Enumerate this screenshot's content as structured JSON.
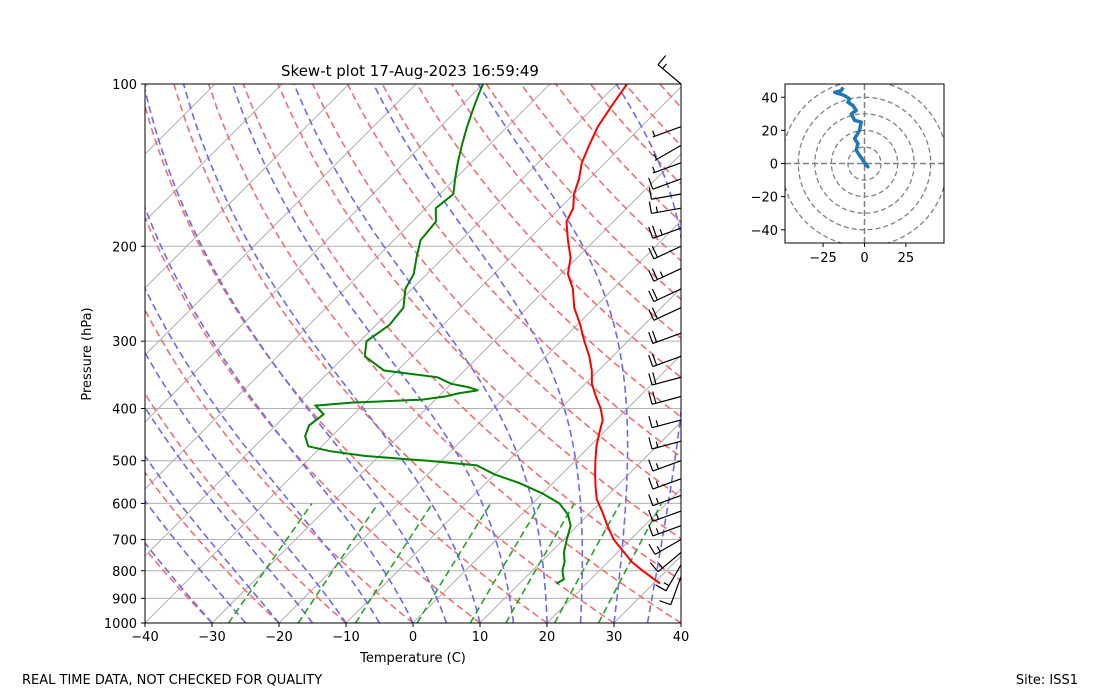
{
  "footer": {
    "left_note": "REAL TIME DATA, NOT CHECKED FOR QUALITY",
    "site": "Site: ISS1"
  },
  "colors": {
    "temperature": "#ff0000",
    "dewpoint": "#008000",
    "isotherm": "#b0b0b0",
    "dry_adiabat": "#f07070",
    "moist_adiabat": "#6a6af0",
    "mixing_ratio": "#2ca02c",
    "hodograph": "#1f77b4",
    "barb": "#000000"
  },
  "chart_data": [
    {
      "type": "line",
      "subtype": "skew-t",
      "title": "Skew-t plot 17-Aug-2023 16:59:49",
      "xlabel": "Temperature (C)",
      "ylabel": "Pressure (hPa)",
      "xlim": [
        -40,
        40
      ],
      "ylim": [
        1000,
        100
      ],
      "y_scale": "log",
      "x_ticks": [
        -40,
        -30,
        -20,
        -10,
        0,
        10,
        20,
        30,
        40
      ],
      "x_tick_labels": [
        "−40",
        "−30",
        "−20",
        "−10",
        "0",
        "10",
        "20",
        "30",
        "40"
      ],
      "y_ticks": [
        1000,
        900,
        800,
        700,
        600,
        500,
        400,
        300,
        200,
        100
      ],
      "y_tick_labels": [
        "1000",
        "900",
        "800",
        "700",
        "600",
        "500",
        "400",
        "300",
        "200",
        "100"
      ],
      "series": [
        {
          "name": "Temperature",
          "color": "#ff0000",
          "p": [
            845,
            830,
            800,
            770,
            740,
            700,
            660,
            620,
            590,
            560,
            530,
            500,
            470,
            445,
            420,
            400,
            380,
            360,
            340,
            320,
            300,
            280,
            260,
            240,
            225,
            210,
            195,
            180,
            170,
            160,
            150,
            140,
            130,
            120,
            110,
            105,
            100
          ],
          "t": [
            31.0,
            29.5,
            26.5,
            23.5,
            21.0,
            17.5,
            14.5,
            11.5,
            9.0,
            7.0,
            5.0,
            3.0,
            1.0,
            -0.5,
            -2.0,
            -4.0,
            -6.5,
            -9.0,
            -11.0,
            -13.5,
            -16.5,
            -19.5,
            -23.0,
            -26.0,
            -29.0,
            -31.0,
            -34.0,
            -37.0,
            -38.0,
            -40.0,
            -41.5,
            -43.5,
            -45.0,
            -46.5,
            -47.5,
            -48.0,
            -48.5
          ]
        },
        {
          "name": "Dewpoint",
          "color": "#008000",
          "p": [
            845,
            830,
            800,
            770,
            740,
            700,
            660,
            630,
            600,
            575,
            550,
            530,
            510,
            500,
            495,
            490,
            480,
            470,
            450,
            430,
            410,
            395,
            390,
            385,
            380,
            375,
            370,
            365,
            360,
            350,
            340,
            320,
            300,
            280,
            260,
            240,
            225,
            210,
            195,
            180,
            170,
            160,
            150,
            140,
            130,
            120,
            110,
            105,
            100
          ],
          "t": [
            15.5,
            16.0,
            14.5,
            13.5,
            12.0,
            10.5,
            9.0,
            7.0,
            4.0,
            0.0,
            -5.0,
            -10.0,
            -14.0,
            -22.0,
            -27.0,
            -32.0,
            -38.0,
            -42.0,
            -44.0,
            -45.0,
            -44.5,
            -47.0,
            -42.0,
            -32.0,
            -29.0,
            -27.5,
            -25.0,
            -27.0,
            -30.0,
            -33.0,
            -42.0,
            -47.0,
            -49.0,
            -48.0,
            -48.5,
            -51.0,
            -52.0,
            -54.0,
            -56.0,
            -56.5,
            -58.5,
            -58.0,
            -60.0,
            -62.0,
            -64.0,
            -66.0,
            -68.0,
            -69.0,
            -70.0
          ]
        }
      ],
      "wind_barbs_note": "Wind barbs plotted along right edge from 1000 to 100 hPa",
      "wind_profile": {
        "p": [
          820,
          780,
          740,
          700,
          660,
          620,
          580,
          540,
          500,
          460,
          420,
          380,
          350,
          320,
          290,
          260,
          240,
          220,
          200,
          185,
          170,
          160,
          150,
          140,
          130,
          120,
          100
        ],
        "speed_kt": [
          10,
          15,
          15,
          15,
          15,
          15,
          15,
          15,
          15,
          15,
          15,
          20,
          20,
          20,
          20,
          20,
          20,
          25,
          20,
          25,
          15,
          10,
          10,
          5,
          5,
          5,
          15
        ],
        "dir_deg": [
          200,
          210,
          230,
          240,
          250,
          250,
          250,
          250,
          250,
          255,
          255,
          255,
          255,
          250,
          250,
          245,
          245,
          245,
          245,
          250,
          260,
          260,
          250,
          250,
          240,
          250,
          310
        ]
      }
    },
    {
      "type": "line",
      "subtype": "hodograph",
      "title": "",
      "xlim": [
        -48,
        48
      ],
      "ylim": [
        -48,
        48
      ],
      "x_ticks": [
        -25,
        0,
        25
      ],
      "x_tick_labels": [
        "−25",
        "0",
        "25"
      ],
      "y_ticks": [
        -40,
        -20,
        0,
        20,
        40
      ],
      "y_tick_labels": [
        "−40",
        "−20",
        "0",
        "20",
        "40"
      ],
      "rings": [
        10,
        20,
        30,
        40,
        50
      ],
      "series": [
        {
          "name": "Hodograph",
          "color": "#1f77b4",
          "u": [
            0,
            2,
            -1,
            -3,
            -5,
            -4,
            -6,
            -3,
            -2,
            -6,
            -8,
            -5,
            -7,
            -10,
            -9,
            -12,
            -15,
            -18,
            -14,
            -13
          ],
          "v": [
            0,
            -2,
            2,
            5,
            8,
            12,
            15,
            20,
            25,
            26,
            30,
            32,
            35,
            37,
            39,
            41,
            42,
            43,
            44,
            46
          ]
        }
      ]
    }
  ]
}
